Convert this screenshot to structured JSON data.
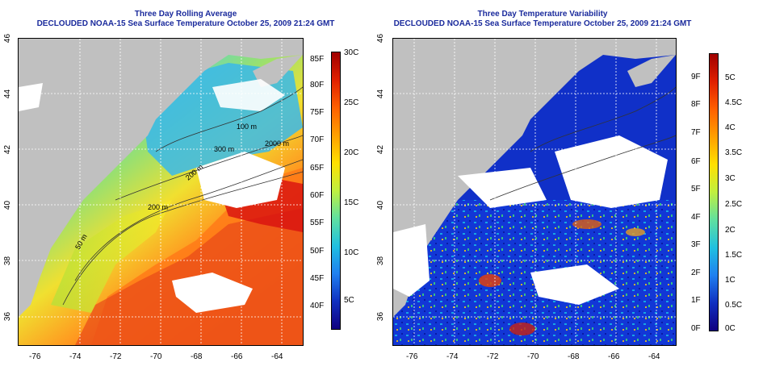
{
  "panels": [
    {
      "id": "left",
      "title_line1": "Three Day Rolling Average",
      "title_line2": "DECLOUDED NOAA-15 Sea Surface Temperature October 25, 2009 21:24 GMT",
      "x_ticks": [
        "-76",
        "-74",
        "-72",
        "-70",
        "-68",
        "-66",
        "-64"
      ],
      "y_ticks": [
        "36",
        "38",
        "40",
        "42",
        "44",
        "46"
      ],
      "contour_labels": [
        "100 m",
        "300 m",
        "200 m",
        "2000 m",
        "200 m",
        "50 m"
      ],
      "colorbar_f": [
        "85F",
        "80F",
        "75F",
        "70F",
        "65F",
        "60F",
        "55F",
        "50F",
        "45F",
        "40F"
      ],
      "colorbar_c": [
        "30C",
        "25C",
        "20C",
        "15C",
        "10C",
        "5C"
      ]
    },
    {
      "id": "right",
      "title_line1": "Three Day Temperature Variability",
      "title_line2": "DECLOUDED NOAA-15 Sea Surface Temperature October 25, 2009 21:24 GMT",
      "x_ticks": [
        "-76",
        "-74",
        "-72",
        "-70",
        "-68",
        "-66",
        "-64"
      ],
      "y_ticks": [
        "36",
        "38",
        "40",
        "42",
        "44",
        "46"
      ],
      "colorbar_f": [
        "9F",
        "8F",
        "7F",
        "6F",
        "5F",
        "4F",
        "3F",
        "2F",
        "1F",
        "0F"
      ],
      "colorbar_c": [
        "5C",
        "4.5C",
        "4C",
        "3.5C",
        "3C",
        "2.5C",
        "2C",
        "1.5C",
        "1C",
        "0.5C",
        "0C"
      ]
    }
  ],
  "colors": {
    "land": "#c0c0c0",
    "title": "#1a2a9c",
    "cloud": "#ffffff"
  }
}
